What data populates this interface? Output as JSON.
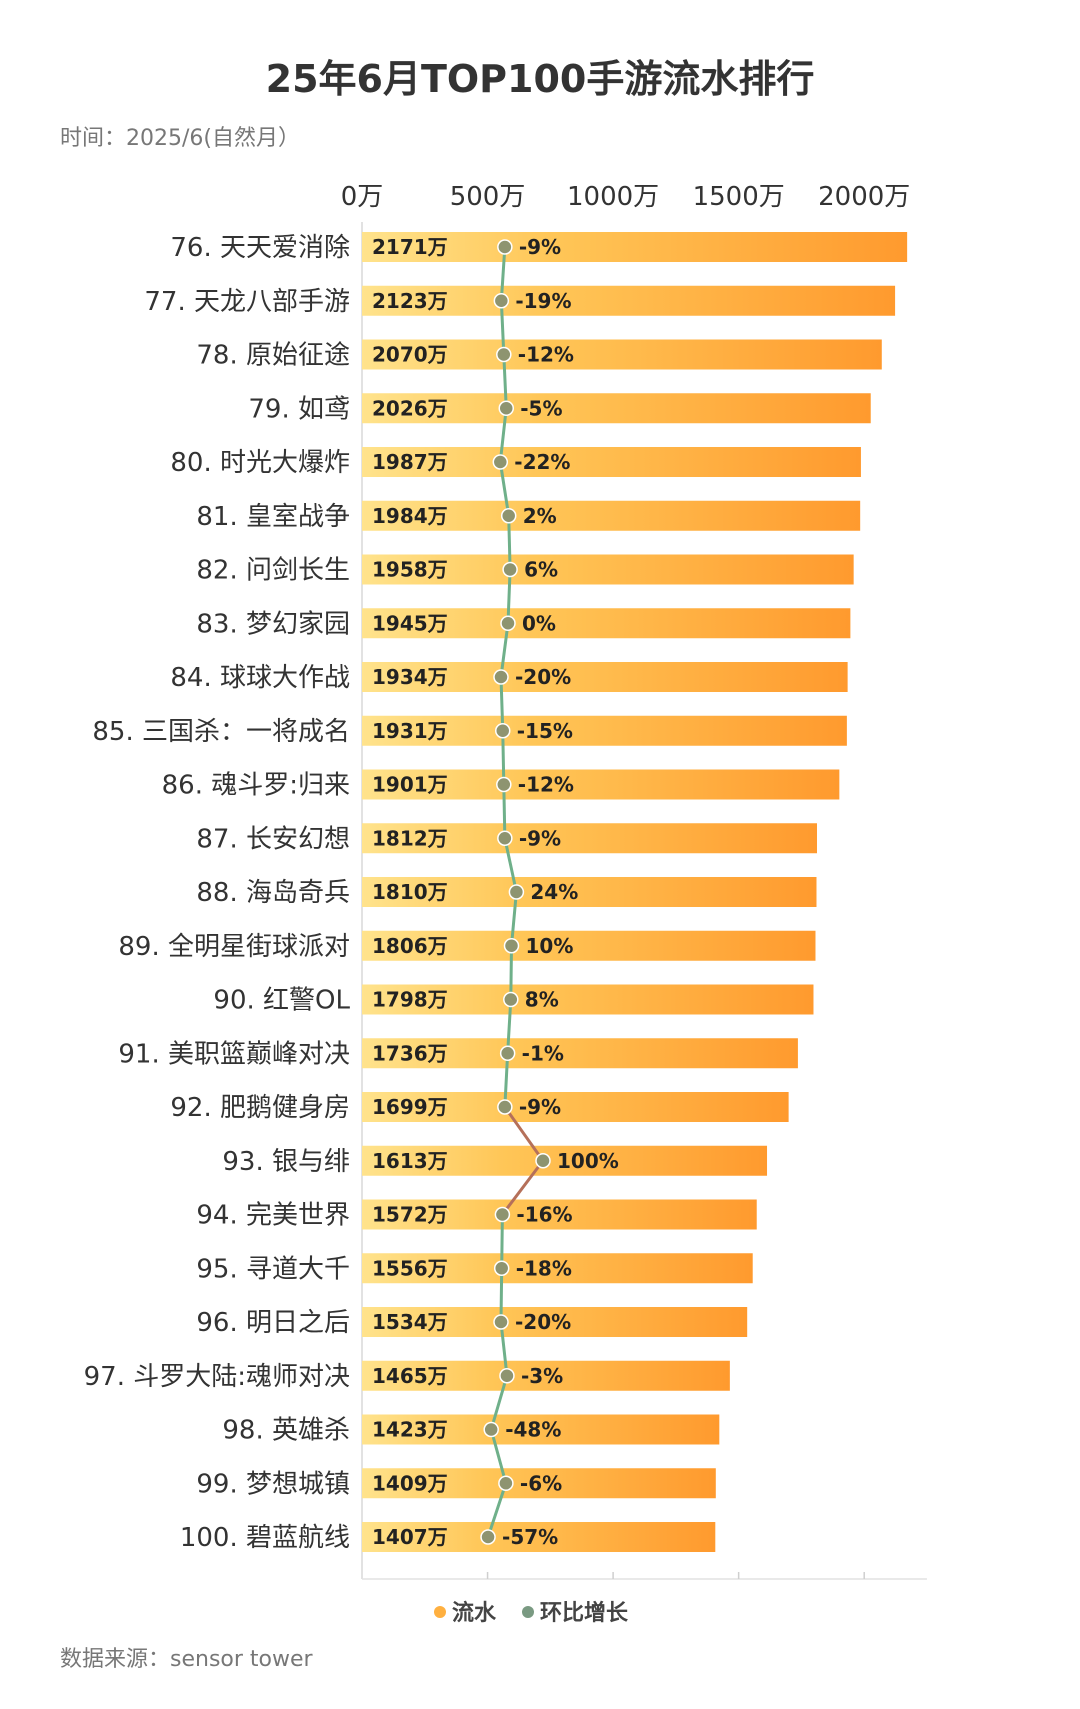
{
  "chart_data": {
    "type": "bar",
    "title": "25年6月TOP100手游流水排行",
    "subtitle": "时间：2025/6(自然月）",
    "source": "数据来源：sensor tower",
    "x_ticks": [
      0,
      500,
      1000,
      1500,
      2000
    ],
    "x_tick_labels": [
      "0万",
      "500万",
      "1000万",
      "1500万",
      "2000万"
    ],
    "xlim": [
      0,
      2400
    ],
    "categories": [
      "76. 天天爱消除",
      "77. 天龙八部手游",
      "78. 原始征途",
      "79. 如鸢",
      "80. 时光大爆炸",
      "81. 皇室战争",
      "82. 问剑长生",
      "83. 梦幻家园",
      "84. 球球大作战",
      "85. 三国杀：一将成名",
      "86. 魂斗罗:归来",
      "87. 长安幻想",
      "88. 海岛奇兵",
      "89. 全明星街球派对",
      "90. 红警OL",
      "91. 美职篮巅峰对决",
      "92. 肥鹅健身房",
      "93. 银与绯",
      "94. 完美世界",
      "95. 寻道大千",
      "96. 明日之后",
      "97. 斗罗大陆:魂师对决",
      "98. 英雄杀",
      "99. 梦想城镇",
      "100. 碧蓝航线"
    ],
    "series": [
      {
        "name": "流水",
        "values": [
          2171,
          2123,
          2070,
          2026,
          1987,
          1984,
          1958,
          1945,
          1934,
          1931,
          1901,
          1812,
          1810,
          1806,
          1798,
          1736,
          1699,
          1613,
          1572,
          1556,
          1534,
          1465,
          1423,
          1409,
          1407
        ],
        "value_labels": [
          "2171万",
          "2123万",
          "2070万",
          "2026万",
          "1987万",
          "1984万",
          "1958万",
          "1945万",
          "1934万",
          "1931万",
          "1901万",
          "1812万",
          "1810万",
          "1806万",
          "1798万",
          "1736万",
          "1699万",
          "1613万",
          "1572万",
          "1556万",
          "1534万",
          "1465万",
          "1423万",
          "1409万",
          "1407万"
        ],
        "color": "#FFA43A"
      },
      {
        "name": "环比增长",
        "values": [
          -9,
          -19,
          -12,
          -5,
          -22,
          2,
          6,
          0,
          -20,
          -15,
          -12,
          -9,
          24,
          10,
          8,
          -1,
          -9,
          100,
          -16,
          -18,
          -20,
          -3,
          -48,
          -6,
          -57
        ],
        "value_labels": [
          "-9%",
          "-19%",
          "-12%",
          "-5%",
          "-22%",
          "2%",
          "6%",
          "0%",
          "-20%",
          "-15%",
          "-12%",
          "-9%",
          "24%",
          "10%",
          "8%",
          "-1%",
          "-9%",
          "100%",
          "-16%",
          "-18%",
          "-20%",
          "-3%",
          "-48%",
          "-6%",
          "-57%"
        ],
        "color": "#7A9A82"
      }
    ],
    "legend": {
      "position": "bottom-center",
      "items": [
        "流水",
        "环比增长"
      ]
    },
    "colors": {
      "bar_start": "#FFE08A",
      "bar_end": "#FF9A2E",
      "line_positive": "#6FB08A",
      "line_spike": "#B5705A",
      "dot": "#8E9470"
    }
  }
}
